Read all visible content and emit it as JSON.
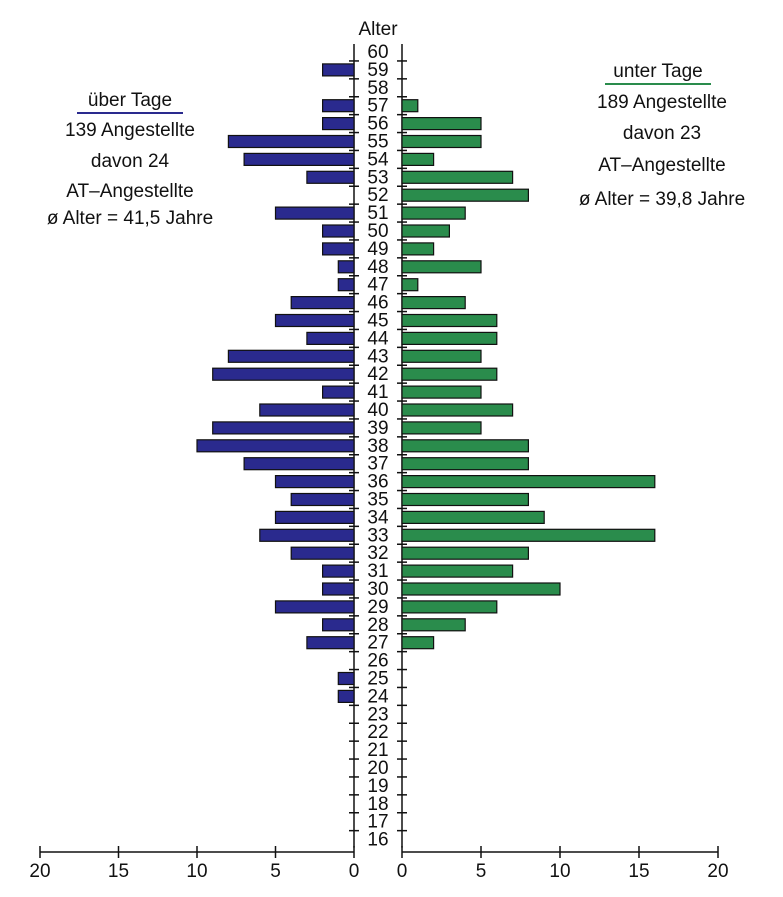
{
  "chart_data": {
    "type": "pyramid",
    "y_label": "Alter",
    "categories": [
      "60",
      "59",
      "58",
      "57",
      "56",
      "55",
      "54",
      "53",
      "52",
      "51",
      "50",
      "49",
      "48",
      "47",
      "46",
      "45",
      "44",
      "43",
      "42",
      "41",
      "40",
      "39",
      "38",
      "37",
      "36",
      "35",
      "34",
      "33",
      "32",
      "31",
      "30",
      "29",
      "28",
      "27",
      "26",
      "25",
      "24",
      "23",
      "22",
      "21",
      "20",
      "19",
      "18",
      "17",
      "16"
    ],
    "series": [
      {
        "name": "über Tage",
        "color": "#2a2a8e",
        "side": "left",
        "annotations": [
          "139 Angestellte",
          "davon 24",
          "AT–Angestellte",
          "ø Alter = 41,5 Jahre"
        ],
        "values": [
          0,
          2,
          0,
          2,
          2,
          8,
          7,
          3,
          0,
          5,
          2,
          2,
          1,
          1,
          4,
          5,
          3,
          8,
          9,
          2,
          6,
          9,
          10,
          7,
          5,
          4,
          5,
          6,
          4,
          2,
          2,
          5,
          2,
          3,
          0,
          1,
          1,
          0,
          0,
          0,
          0,
          0,
          0,
          0,
          0
        ]
      },
      {
        "name": "unter Tage",
        "color": "#2a8c4c",
        "side": "right",
        "annotations": [
          "189 Angestellte",
          "davon 23",
          "AT–Angestellte",
          "ø Alter = 39,8 Jahre"
        ],
        "values": [
          0,
          0,
          0,
          1,
          5,
          5,
          2,
          7,
          8,
          4,
          3,
          2,
          5,
          1,
          4,
          6,
          6,
          5,
          6,
          5,
          7,
          5,
          8,
          8,
          16,
          8,
          9,
          16,
          8,
          7,
          10,
          6,
          4,
          2,
          0,
          0,
          0,
          0,
          0,
          0,
          0,
          0,
          0,
          0,
          0
        ]
      }
    ],
    "xlim": [
      0,
      20
    ],
    "xticks": [
      0,
      5,
      10,
      15,
      20
    ]
  }
}
